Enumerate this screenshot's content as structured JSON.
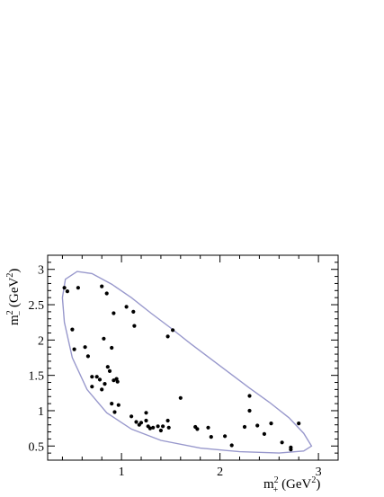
{
  "chart_data": {
    "type": "scatter",
    "title": "",
    "xlabel": {
      "base": "m",
      "sup": "2",
      "sub": "+",
      "unit_open": " (GeV",
      "unit_sup": "2",
      "unit_close": ")"
    },
    "ylabel": {
      "base": "m",
      "sup": "2",
      "sub": "−",
      "unit_open": " (GeV",
      "unit_sup": "2",
      "unit_close": ")"
    },
    "xlim": [
      0.25,
      3.2
    ],
    "ylim": [
      0.3,
      3.2
    ],
    "x_ticks": [
      {
        "v": 1,
        "label": "1"
      },
      {
        "v": 2,
        "label": "2"
      },
      {
        "v": 3,
        "label": "3"
      }
    ],
    "y_ticks": [
      {
        "v": 0.5,
        "label": "0.5"
      },
      {
        "v": 1,
        "label": "1"
      },
      {
        "v": 1.5,
        "label": "1.5"
      },
      {
        "v": 2,
        "label": "2"
      },
      {
        "v": 2.5,
        "label": "2.5"
      },
      {
        "v": 3,
        "label": "3"
      }
    ],
    "grid": false,
    "colors": {
      "boundary": "#9898cc",
      "points": "#000000",
      "axes": "#000000"
    },
    "boundary": [
      [
        0.43,
        2.86
      ],
      [
        0.55,
        2.97
      ],
      [
        0.7,
        2.94
      ],
      [
        0.9,
        2.79
      ],
      [
        1.1,
        2.6
      ],
      [
        1.3,
        2.38
      ],
      [
        1.5,
        2.17
      ],
      [
        1.7,
        1.95
      ],
      [
        1.9,
        1.74
      ],
      [
        2.1,
        1.53
      ],
      [
        2.3,
        1.32
      ],
      [
        2.5,
        1.12
      ],
      [
        2.7,
        0.9
      ],
      [
        2.85,
        0.68
      ],
      [
        2.93,
        0.5
      ],
      [
        2.85,
        0.43
      ],
      [
        2.6,
        0.4
      ],
      [
        2.2,
        0.42
      ],
      [
        1.8,
        0.47
      ],
      [
        1.4,
        0.58
      ],
      [
        1.1,
        0.74
      ],
      [
        0.85,
        0.97
      ],
      [
        0.65,
        1.3
      ],
      [
        0.5,
        1.75
      ],
      [
        0.42,
        2.25
      ],
      [
        0.4,
        2.6
      ],
      [
        0.43,
        2.86
      ]
    ],
    "points": [
      [
        0.42,
        2.74
      ],
      [
        0.45,
        2.69
      ],
      [
        0.56,
        2.74
      ],
      [
        0.8,
        2.76
      ],
      [
        0.85,
        2.66
      ],
      [
        0.5,
        2.15
      ],
      [
        0.52,
        1.87
      ],
      [
        0.63,
        1.9
      ],
      [
        0.66,
        1.77
      ],
      [
        0.82,
        2.02
      ],
      [
        0.9,
        1.89
      ],
      [
        0.92,
        2.38
      ],
      [
        1.05,
        2.47
      ],
      [
        1.12,
        2.4
      ],
      [
        1.13,
        2.2
      ],
      [
        1.47,
        2.05
      ],
      [
        1.52,
        2.14
      ],
      [
        0.7,
        1.48
      ],
      [
        0.75,
        1.48
      ],
      [
        0.78,
        1.44
      ],
      [
        0.7,
        1.34
      ],
      [
        0.8,
        1.3
      ],
      [
        0.83,
        1.38
      ],
      [
        0.86,
        1.62
      ],
      [
        0.88,
        1.56
      ],
      [
        0.92,
        1.43
      ],
      [
        0.95,
        1.45
      ],
      [
        0.96,
        1.41
      ],
      [
        0.9,
        1.1
      ],
      [
        0.93,
        0.98
      ],
      [
        0.97,
        1.08
      ],
      [
        1.1,
        0.92
      ],
      [
        1.15,
        0.84
      ],
      [
        1.18,
        0.8
      ],
      [
        1.2,
        0.83
      ],
      [
        1.25,
        0.97
      ],
      [
        1.25,
        0.86
      ],
      [
        1.27,
        0.78
      ],
      [
        1.29,
        0.75
      ],
      [
        1.32,
        0.76
      ],
      [
        1.37,
        0.78
      ],
      [
        1.4,
        0.72
      ],
      [
        1.42,
        0.78
      ],
      [
        1.47,
        0.86
      ],
      [
        1.48,
        0.76
      ],
      [
        1.6,
        1.18
      ],
      [
        1.75,
        0.77
      ],
      [
        1.77,
        0.74
      ],
      [
        1.88,
        0.76
      ],
      [
        1.91,
        0.63
      ],
      [
        2.05,
        0.64
      ],
      [
        2.12,
        0.51
      ],
      [
        2.25,
        0.77
      ],
      [
        2.3,
        1.0
      ],
      [
        2.3,
        1.21
      ],
      [
        2.38,
        0.79
      ],
      [
        2.45,
        0.67
      ],
      [
        2.52,
        0.82
      ],
      [
        2.63,
        0.55
      ],
      [
        2.72,
        0.48
      ],
      [
        2.72,
        0.45
      ],
      [
        2.8,
        0.82
      ]
    ]
  }
}
